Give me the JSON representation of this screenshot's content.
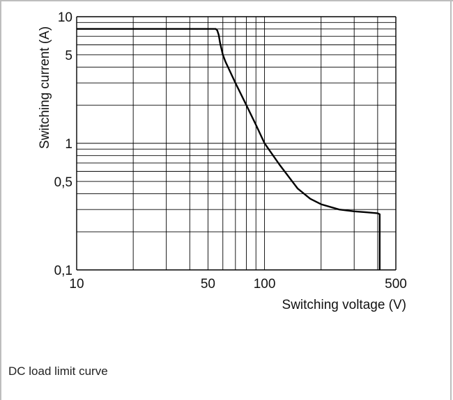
{
  "chart_data": {
    "type": "line",
    "xlabel": "Switching voltage (V)",
    "ylabel": "Switching current (A)",
    "x_scale": "log",
    "y_scale": "log",
    "xlim": [
      10,
      500
    ],
    "ylim": [
      0.1,
      10
    ],
    "grid": true,
    "x_ticks": [
      {
        "value": 10,
        "label": "10"
      },
      {
        "value": 50,
        "label": "50"
      },
      {
        "value": 100,
        "label": "100"
      },
      {
        "value": 500,
        "label": "500"
      }
    ],
    "y_ticks": [
      {
        "value": 10,
        "label": "10"
      },
      {
        "value": 5,
        "label": "5"
      },
      {
        "value": 1,
        "label": "1"
      },
      {
        "value": 0.5,
        "label": "0,5"
      },
      {
        "value": 0.1,
        "label": "0,1"
      }
    ],
    "series": [
      {
        "x": [
          10,
          55,
          56,
          57,
          58,
          60,
          62,
          70,
          80,
          90,
          100,
          120,
          150,
          175,
          200,
          250,
          300,
          350,
          400,
          410,
          410
        ],
        "y": [
          8,
          8,
          7.8,
          7.2,
          6.2,
          5.0,
          4.4,
          3.0,
          2.0,
          1.4,
          1.0,
          0.68,
          0.44,
          0.365,
          0.33,
          0.3,
          0.29,
          0.285,
          0.28,
          0.275,
          0.1
        ]
      }
    ]
  },
  "caption": "DC load limit curve",
  "colors": {
    "line": "#000000",
    "grid": "#000000",
    "border": "#bdbdbd"
  }
}
